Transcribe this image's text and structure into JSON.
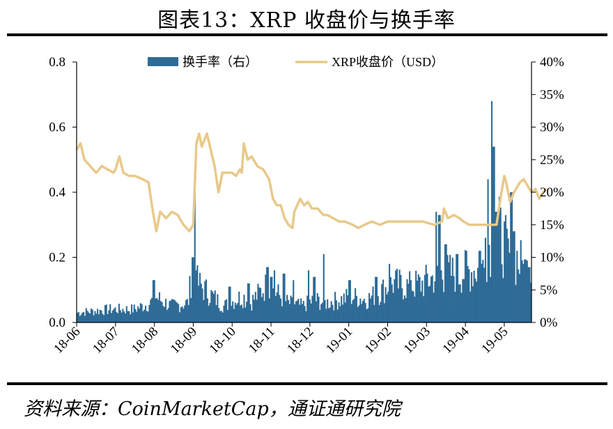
{
  "title": "图表13：XRP 收盘价与换手率",
  "source": "资料来源：CoinMarketCap，通证通研究院",
  "colors": {
    "bar": "#2e6b96",
    "line": "#e8c98a",
    "axis": "#000000"
  },
  "chart_data": {
    "type": "bar+line",
    "legend": {
      "placement": "top-center",
      "items": [
        {
          "label": "换手率（右）",
          "kind": "bar"
        },
        {
          "label": "XRP收盘价（USD）",
          "kind": "line"
        }
      ]
    },
    "x_tick_labels": [
      "18-06",
      "18-07",
      "18-08",
      "18-09",
      "18-10",
      "18-11",
      "18-12",
      "19-01",
      "19-02",
      "19-03",
      "19-04",
      "19-05"
    ],
    "left_axis": {
      "ylim": [
        0,
        0.8
      ],
      "tick_labels": [
        "0.0",
        "0.2",
        "0.4",
        "0.6",
        "0.8"
      ]
    },
    "right_axis": {
      "ylim": [
        0,
        40
      ],
      "unit": "%",
      "tick_labels": [
        "0%",
        "5%",
        "10%",
        "15%",
        "20%",
        "25%",
        "30%",
        "35%",
        "40%"
      ]
    },
    "grid": false,
    "price_series": {
      "name": "XRP收盘价（USD）",
      "months": [
        "18-06",
        "18-07",
        "18-08",
        "18-09",
        "18-10",
        "18-11",
        "18-12",
        "19-01",
        "19-02",
        "19-03",
        "19-04",
        "19-05"
      ],
      "points": [
        [
          0.0,
          0.53
        ],
        [
          0.1,
          0.55
        ],
        [
          0.2,
          0.5
        ],
        [
          0.35,
          0.48
        ],
        [
          0.5,
          0.46
        ],
        [
          0.65,
          0.48
        ],
        [
          0.8,
          0.47
        ],
        [
          0.95,
          0.46
        ],
        [
          1.0,
          0.47
        ],
        [
          1.1,
          0.51
        ],
        [
          1.2,
          0.46
        ],
        [
          1.35,
          0.45
        ],
        [
          1.5,
          0.45
        ],
        [
          1.7,
          0.44
        ],
        [
          1.85,
          0.43
        ],
        [
          1.95,
          0.35
        ],
        [
          2.05,
          0.28
        ],
        [
          2.15,
          0.34
        ],
        [
          2.3,
          0.32
        ],
        [
          2.45,
          0.34
        ],
        [
          2.6,
          0.33
        ],
        [
          2.75,
          0.3
        ],
        [
          2.9,
          0.28
        ],
        [
          3.0,
          0.3
        ],
        [
          3.08,
          0.55
        ],
        [
          3.15,
          0.58
        ],
        [
          3.22,
          0.54
        ],
        [
          3.35,
          0.58
        ],
        [
          3.45,
          0.53
        ],
        [
          3.55,
          0.48
        ],
        [
          3.65,
          0.4
        ],
        [
          3.75,
          0.46
        ],
        [
          3.85,
          0.46
        ],
        [
          4.0,
          0.46
        ],
        [
          4.1,
          0.45
        ],
        [
          4.2,
          0.47
        ],
        [
          4.25,
          0.46
        ],
        [
          4.3,
          0.55
        ],
        [
          4.4,
          0.5
        ],
        [
          4.5,
          0.51
        ],
        [
          4.55,
          0.5
        ],
        [
          4.65,
          0.48
        ],
        [
          4.8,
          0.47
        ],
        [
          4.95,
          0.44
        ],
        [
          5.05,
          0.38
        ],
        [
          5.15,
          0.36
        ],
        [
          5.25,
          0.36
        ],
        [
          5.35,
          0.32
        ],
        [
          5.45,
          0.3
        ],
        [
          5.55,
          0.29
        ],
        [
          5.6,
          0.34
        ],
        [
          5.75,
          0.38
        ],
        [
          5.85,
          0.36
        ],
        [
          5.95,
          0.37
        ],
        [
          6.05,
          0.35
        ],
        [
          6.2,
          0.35
        ],
        [
          6.35,
          0.33
        ],
        [
          6.45,
          0.33
        ],
        [
          6.6,
          0.32
        ],
        [
          6.75,
          0.31
        ],
        [
          6.9,
          0.31
        ],
        [
          7.1,
          0.3
        ],
        [
          7.25,
          0.29
        ],
        [
          7.4,
          0.3
        ],
        [
          7.6,
          0.31
        ],
        [
          7.8,
          0.3
        ],
        [
          8.0,
          0.31
        ],
        [
          8.3,
          0.31
        ],
        [
          8.6,
          0.31
        ],
        [
          8.9,
          0.31
        ],
        [
          9.2,
          0.3
        ],
        [
          9.4,
          0.31
        ],
        [
          9.45,
          0.35
        ],
        [
          9.55,
          0.32
        ],
        [
          9.7,
          0.33
        ],
        [
          9.85,
          0.32
        ],
        [
          9.95,
          0.31
        ],
        [
          10.1,
          0.3
        ],
        [
          10.3,
          0.3
        ],
        [
          10.5,
          0.3
        ],
        [
          10.7,
          0.3
        ],
        [
          10.8,
          0.3
        ],
        [
          10.9,
          0.38
        ],
        [
          11.0,
          0.45
        ],
        [
          11.05,
          0.43
        ],
        [
          11.15,
          0.37
        ],
        [
          11.25,
          0.4
        ],
        [
          11.4,
          0.43
        ],
        [
          11.5,
          0.44
        ],
        [
          11.6,
          0.42
        ],
        [
          11.7,
          0.4
        ],
        [
          11.8,
          0.41
        ],
        [
          11.9,
          0.38
        ],
        [
          12.0,
          0.4
        ],
        [
          12.1,
          0.41
        ]
      ]
    },
    "turnover_series": {
      "name": "换手率（右）",
      "unit": "%",
      "months": [
        "18-06",
        "18-07",
        "18-08",
        "18-09",
        "18-10",
        "18-11",
        "18-12",
        "19-01",
        "19-02",
        "19-03",
        "19-04",
        "19-05"
      ],
      "base_profile": [
        [
          0.0,
          1.5
        ],
        [
          0.9,
          2.0
        ],
        [
          1.5,
          2.0
        ],
        [
          1.95,
          3.0
        ],
        [
          2.05,
          4.0
        ],
        [
          2.5,
          2.5
        ],
        [
          2.95,
          3.0
        ],
        [
          3.05,
          8.0
        ],
        [
          3.2,
          6.0
        ],
        [
          3.5,
          4.5
        ],
        [
          3.9,
          2.5
        ],
        [
          4.2,
          3.5
        ],
        [
          4.4,
          4.0
        ],
        [
          4.6,
          3.0
        ],
        [
          5.0,
          5.5
        ],
        [
          5.3,
          4.5
        ],
        [
          5.6,
          3.0
        ],
        [
          6.0,
          2.5
        ],
        [
          6.3,
          3.5
        ],
        [
          6.6,
          3.0
        ],
        [
          7.0,
          3.5
        ],
        [
          7.3,
          4.0
        ],
        [
          7.7,
          3.5
        ],
        [
          8.0,
          4.5
        ],
        [
          8.4,
          6.0
        ],
        [
          8.8,
          5.5
        ],
        [
          9.2,
          6.0
        ],
        [
          9.5,
          7.0
        ],
        [
          9.8,
          7.5
        ],
        [
          10.1,
          7.5
        ],
        [
          10.5,
          8.0
        ],
        [
          10.85,
          8.5
        ],
        [
          10.9,
          12.0
        ],
        [
          11.2,
          14.0
        ],
        [
          11.5,
          10.0
        ],
        [
          11.8,
          9.0
        ],
        [
          12.1,
          7.0
        ]
      ],
      "spikes": [
        [
          2.03,
          6.5
        ],
        [
          3.08,
          10.0
        ],
        [
          3.12,
          23.0
        ],
        [
          3.18,
          8.0
        ],
        [
          4.05,
          5.5
        ],
        [
          4.55,
          6.0
        ],
        [
          5.05,
          8.5
        ],
        [
          5.15,
          7.0
        ],
        [
          5.25,
          8.0
        ],
        [
          5.5,
          7.5
        ],
        [
          5.75,
          6.5
        ],
        [
          6.15,
          8.0
        ],
        [
          6.3,
          7.0
        ],
        [
          6.55,
          10.5
        ],
        [
          7.25,
          6.5
        ],
        [
          7.95,
          7.0
        ],
        [
          8.3,
          9.0
        ],
        [
          8.85,
          6.5
        ],
        [
          9.3,
          7.5
        ],
        [
          9.55,
          17.0
        ],
        [
          9.62,
          16.5
        ],
        [
          9.8,
          12.0
        ],
        [
          10.1,
          10.5
        ],
        [
          10.35,
          11.0
        ],
        [
          10.7,
          11.0
        ],
        [
          10.85,
          13.0
        ],
        [
          10.92,
          22.0
        ],
        [
          11.02,
          34.0
        ],
        [
          11.08,
          27.0
        ],
        [
          11.15,
          17.0
        ],
        [
          11.25,
          15.0
        ],
        [
          11.38,
          13.5
        ],
        [
          11.55,
          20.0
        ],
        [
          11.62,
          14.0
        ],
        [
          11.7,
          11.0
        ],
        [
          11.85,
          9.0
        ],
        [
          11.95,
          9.5
        ],
        [
          12.02,
          8.5
        ]
      ]
    }
  }
}
